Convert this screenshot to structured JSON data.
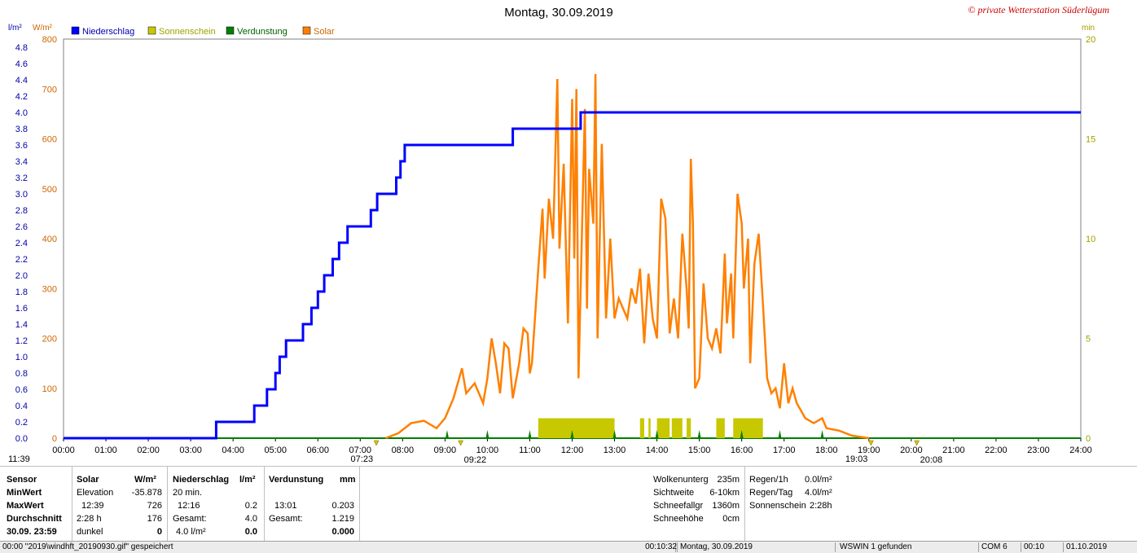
{
  "title": "Montag, 30.09.2019",
  "copyright": "© private Wetterstation Süderlügum",
  "units": {
    "left1": "l/m²",
    "left2": "W/m²",
    "right": "min"
  },
  "legend": [
    {
      "name": "Niederschlag",
      "color": "#0000ff"
    },
    {
      "name": "Sonnenschein",
      "color": "#c8c800"
    },
    {
      "name": "Verdunstung",
      "color": "#008000"
    },
    {
      "name": "Solar",
      "color": "#ff8000"
    }
  ],
  "chart_data": {
    "type": "line",
    "x_ticks": [
      "00:00",
      "01:00",
      "02:00",
      "03:00",
      "04:00",
      "05:00",
      "06:00",
      "07:00",
      "08:00",
      "09:00",
      "10:00",
      "11:00",
      "12:00",
      "13:00",
      "14:00",
      "15:00",
      "16:00",
      "17:00",
      "18:00",
      "19:00",
      "20:00",
      "21:00",
      "22:00",
      "23:00",
      "24:00"
    ],
    "y_left_rain_ticks": [
      "0.0",
      "0.2",
      "0.4",
      "0.6",
      "0.8",
      "1.0",
      "1.2",
      "1.4",
      "1.6",
      "1.8",
      "2.0",
      "2.2",
      "2.4",
      "2.6",
      "2.8",
      "3.0",
      "3.2",
      "3.4",
      "3.6",
      "3.8",
      "4.0",
      "4.2",
      "4.4",
      "4.6",
      "4.8"
    ],
    "y_left_solar_ticks": [
      "0",
      "100",
      "200",
      "300",
      "400",
      "500",
      "600",
      "700",
      "800"
    ],
    "y_right_ticks": [
      "0",
      "5",
      "10",
      "15",
      "20"
    ],
    "ylim_rain": [
      0,
      4.9
    ],
    "ylim_solar": [
      0,
      800
    ],
    "ylim_minutes": [
      0,
      20
    ],
    "series": [
      {
        "name": "Niederschlag",
        "unit": "l/m²",
        "points": [
          [
            0,
            0
          ],
          [
            3.6,
            0
          ],
          [
            3.6,
            0.2
          ],
          [
            4.5,
            0.2
          ],
          [
            4.5,
            0.4
          ],
          [
            4.8,
            0.4
          ],
          [
            4.8,
            0.6
          ],
          [
            5.0,
            0.6
          ],
          [
            5.0,
            0.8
          ],
          [
            5.1,
            0.8
          ],
          [
            5.1,
            1.0
          ],
          [
            5.25,
            1.0
          ],
          [
            5.25,
            1.2
          ],
          [
            5.65,
            1.2
          ],
          [
            5.65,
            1.4
          ],
          [
            5.85,
            1.4
          ],
          [
            5.85,
            1.6
          ],
          [
            6.0,
            1.6
          ],
          [
            6.0,
            1.8
          ],
          [
            6.15,
            1.8
          ],
          [
            6.15,
            2.0
          ],
          [
            6.35,
            2.0
          ],
          [
            6.35,
            2.2
          ],
          [
            6.5,
            2.2
          ],
          [
            6.5,
            2.4
          ],
          [
            6.7,
            2.4
          ],
          [
            6.7,
            2.6
          ],
          [
            7.25,
            2.6
          ],
          [
            7.25,
            2.8
          ],
          [
            7.4,
            2.8
          ],
          [
            7.4,
            3.0
          ],
          [
            7.85,
            3.0
          ],
          [
            7.85,
            3.2
          ],
          [
            7.95,
            3.2
          ],
          [
            7.95,
            3.4
          ],
          [
            8.05,
            3.4
          ],
          [
            8.05,
            3.6
          ],
          [
            10.6,
            3.6
          ],
          [
            10.6,
            3.8
          ],
          [
            12.2,
            3.8
          ],
          [
            12.2,
            4.0
          ],
          [
            24,
            4.0
          ]
        ]
      },
      {
        "name": "Solar",
        "unit": "W/m²",
        "points": [
          [
            7.6,
            0
          ],
          [
            7.9,
            10
          ],
          [
            8.2,
            30
          ],
          [
            8.5,
            35
          ],
          [
            8.8,
            20
          ],
          [
            9.0,
            40
          ],
          [
            9.2,
            80
          ],
          [
            9.4,
            140
          ],
          [
            9.5,
            90
          ],
          [
            9.7,
            110
          ],
          [
            9.9,
            70
          ],
          [
            10.0,
            120
          ],
          [
            10.1,
            200
          ],
          [
            10.2,
            150
          ],
          [
            10.3,
            90
          ],
          [
            10.4,
            190
          ],
          [
            10.5,
            180
          ],
          [
            10.6,
            80
          ],
          [
            10.75,
            150
          ],
          [
            10.85,
            220
          ],
          [
            10.95,
            210
          ],
          [
            11.0,
            130
          ],
          [
            11.05,
            150
          ],
          [
            11.2,
            340
          ],
          [
            11.3,
            460
          ],
          [
            11.35,
            320
          ],
          [
            11.45,
            480
          ],
          [
            11.55,
            400
          ],
          [
            11.65,
            720
          ],
          [
            11.7,
            380
          ],
          [
            11.8,
            550
          ],
          [
            11.9,
            230
          ],
          [
            12.0,
            680
          ],
          [
            12.05,
            360
          ],
          [
            12.1,
            700
          ],
          [
            12.15,
            120
          ],
          [
            12.3,
            660
          ],
          [
            12.35,
            260
          ],
          [
            12.4,
            540
          ],
          [
            12.5,
            430
          ],
          [
            12.55,
            730
          ],
          [
            12.6,
            200
          ],
          [
            12.7,
            590
          ],
          [
            12.8,
            240
          ],
          [
            12.9,
            400
          ],
          [
            13.0,
            240
          ],
          [
            13.1,
            280
          ],
          [
            13.3,
            240
          ],
          [
            13.4,
            300
          ],
          [
            13.5,
            270
          ],
          [
            13.6,
            340
          ],
          [
            13.7,
            190
          ],
          [
            13.8,
            330
          ],
          [
            13.9,
            240
          ],
          [
            14.0,
            200
          ],
          [
            14.1,
            480
          ],
          [
            14.2,
            440
          ],
          [
            14.3,
            210
          ],
          [
            14.4,
            280
          ],
          [
            14.5,
            200
          ],
          [
            14.6,
            410
          ],
          [
            14.7,
            300
          ],
          [
            14.75,
            220
          ],
          [
            14.8,
            560
          ],
          [
            14.85,
            430
          ],
          [
            14.9,
            100
          ],
          [
            15.0,
            120
          ],
          [
            15.1,
            310
          ],
          [
            15.2,
            200
          ],
          [
            15.3,
            180
          ],
          [
            15.4,
            220
          ],
          [
            15.5,
            170
          ],
          [
            15.6,
            370
          ],
          [
            15.65,
            230
          ],
          [
            15.75,
            330
          ],
          [
            15.8,
            200
          ],
          [
            15.9,
            490
          ],
          [
            16.0,
            430
          ],
          [
            16.05,
            300
          ],
          [
            16.15,
            400
          ],
          [
            16.2,
            150
          ],
          [
            16.3,
            350
          ],
          [
            16.4,
            410
          ],
          [
            16.5,
            270
          ],
          [
            16.6,
            120
          ],
          [
            16.7,
            90
          ],
          [
            16.8,
            100
          ],
          [
            16.9,
            60
          ],
          [
            17.0,
            150
          ],
          [
            17.1,
            70
          ],
          [
            17.2,
            100
          ],
          [
            17.3,
            70
          ],
          [
            17.5,
            40
          ],
          [
            17.7,
            30
          ],
          [
            17.9,
            40
          ],
          [
            18.0,
            20
          ],
          [
            18.3,
            15
          ],
          [
            18.6,
            5
          ],
          [
            19.0,
            0
          ]
        ]
      },
      {
        "name": "Sonnenschein",
        "unit": "min",
        "bars": [
          [
            11.2,
            12.4
          ],
          [
            12.35,
            13.0
          ],
          [
            13.6,
            13.7
          ],
          [
            13.8,
            13.85
          ],
          [
            14.0,
            14.3
          ],
          [
            14.35,
            14.6
          ],
          [
            14.7,
            14.8
          ],
          [
            15.4,
            15.6
          ],
          [
            15.8,
            16.5
          ]
        ],
        "bar_height_min": 1.0
      },
      {
        "name": "Verdunstung",
        "unit": "mm",
        "marks": [
          9.05,
          10.0,
          11.0,
          12.0,
          13.0,
          14.0,
          15.0,
          16.0,
          16.9,
          17.9
        ]
      }
    ],
    "markers": [
      {
        "label": "07:23",
        "x": 7.38,
        "row": "below"
      },
      {
        "label": "09:22",
        "x": 9.37,
        "row": "axis"
      },
      {
        "label": "19:03",
        "x": 19.05,
        "row": "below"
      },
      {
        "label": "20:08",
        "x": 20.13,
        "row": "axis"
      }
    ],
    "left_corner_label": "11:39",
    "grid": true
  },
  "stats": {
    "sensor": {
      "h": "Sensor",
      "min": "MinWert",
      "max": "MaxWert",
      "avg": "Durchschnitt",
      "date": "30.09. 23:59"
    },
    "solar": {
      "h": "Solar",
      "u": "W/m²",
      "r1a": "Elevation",
      "r1b": "-35.878",
      "r2a": "12:39",
      "r2b": "726",
      "r3a": "2:28 h",
      "r3b": "176",
      "r4a": "dunkel",
      "r4b": "0"
    },
    "rain": {
      "h": "Niederschlag",
      "u": "l/m²",
      "r1a": "20 min.",
      "r1b": "",
      "r2a": "12:16",
      "r2b": "0.2",
      "r3a": "Gesamt:",
      "r3b": "4.0",
      "r4a": "4.0 l/m²",
      "r4b": "0.0"
    },
    "evap": {
      "h": "Verdunstung",
      "u": "mm",
      "r1a": "",
      "r1b": "",
      "r2a": "13:01",
      "r2b": "0.203",
      "r3a": "Gesamt:",
      "r3b": "1.219",
      "r4a": "",
      "r4b": "0.000"
    },
    "cloud": {
      "l1": "Wolkenunterg",
      "v1": "235m",
      "l2": "Sichtweite",
      "v2": "6-10km",
      "l3": "Schneefallgr",
      "v3": "1360m",
      "l4": "Schneehöhe",
      "v4": "0cm"
    },
    "rainrate": {
      "l1": "Regen/1h",
      "v1": "0.0l/m²",
      "l2": "Regen/Tag",
      "v2": "4.0l/m²",
      "l3": "Sonnenschein",
      "v3": "2:28h"
    }
  },
  "statusbar": {
    "s1": "00:00  \"2019\\windhft_20190930.gif\" gespeichert",
    "s2": "00:10:32",
    "s3": "Montag, 30.09.2019",
    "s4": "WSWIN 1 gefunden",
    "s5": "COM 6",
    "s6": "00:10",
    "s7": "01.10.2019"
  }
}
